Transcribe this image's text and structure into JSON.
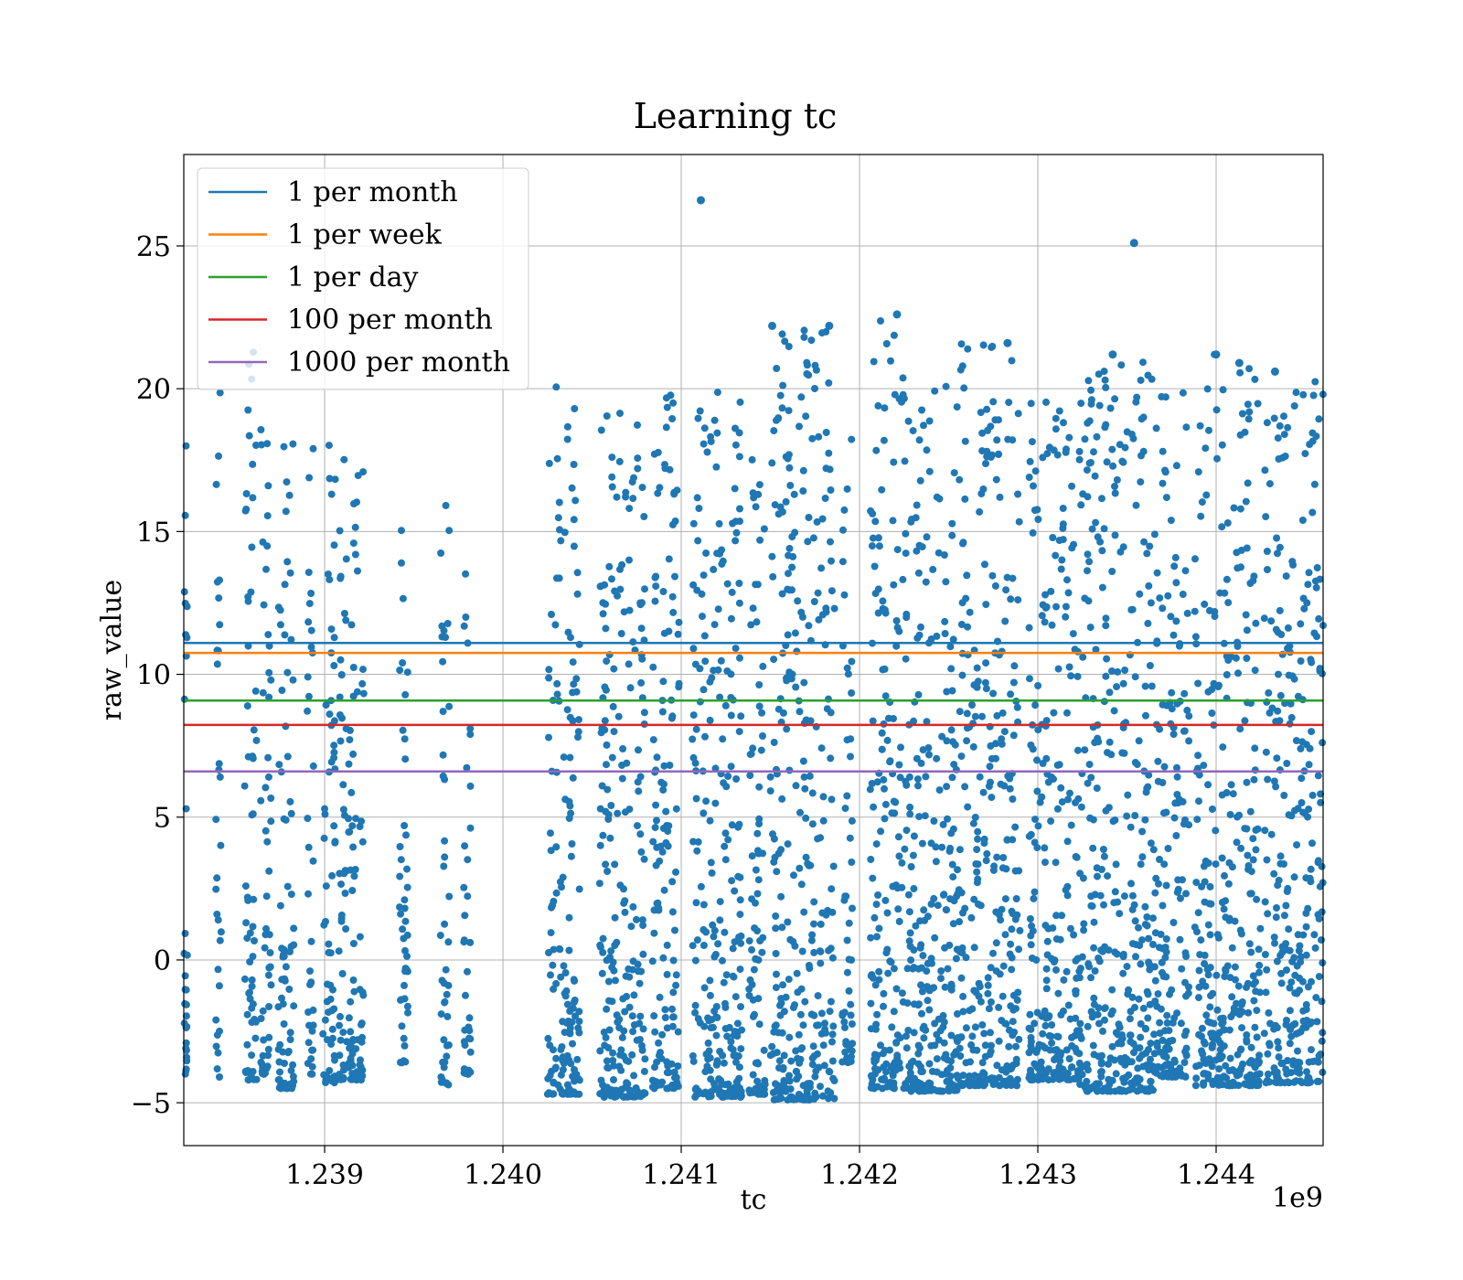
{
  "chart_data": {
    "type": "scatter",
    "title": "Learning tc",
    "xlabel": "tc",
    "ylabel": "raw_value",
    "x_offset_text": "1e9",
    "xlim": [
      1238210000,
      1244600000
    ],
    "ylim": [
      -6.5,
      28.2
    ],
    "x_ticks": [
      1239000000,
      1240000000,
      1241000000,
      1242000000,
      1243000000,
      1244000000
    ],
    "x_tick_labels": [
      "1.239",
      "1.240",
      "1.241",
      "1.242",
      "1.243",
      "1.244"
    ],
    "y_ticks": [
      -5,
      0,
      5,
      10,
      15,
      20,
      25
    ],
    "y_tick_labels": [
      "−5",
      "0",
      "5",
      "10",
      "15",
      "20",
      "25"
    ],
    "grid": true,
    "legend_position": "top-left",
    "scatter_color": "#1f77b4",
    "clusters": [
      {
        "x_start": 1238210000,
        "x_end": 1238230000,
        "y_min": -4.0,
        "y_max": 18.2
      },
      {
        "x_start": 1238390000,
        "x_end": 1238420000,
        "y_min": -4.1,
        "y_max": 20.0
      },
      {
        "x_start": 1238550000,
        "x_end": 1238620000,
        "y_min": -4.2,
        "y_max": 21.8
      },
      {
        "x_start": 1238640000,
        "x_end": 1238700000,
        "y_min": -4.0,
        "y_max": 19.0
      },
      {
        "x_start": 1238740000,
        "x_end": 1238830000,
        "y_min": -4.5,
        "y_max": 20.0
      },
      {
        "x_start": 1238900000,
        "x_end": 1238940000,
        "y_min": -4.0,
        "y_max": 18.0
      },
      {
        "x_start": 1238990000,
        "x_end": 1239060000,
        "y_min": -4.3,
        "y_max": 18.5
      },
      {
        "x_start": 1239080000,
        "x_end": 1239220000,
        "y_min": -4.2,
        "y_max": 19.1
      },
      {
        "x_start": 1239420000,
        "x_end": 1239470000,
        "y_min": -3.6,
        "y_max": 16.2
      },
      {
        "x_start": 1239650000,
        "x_end": 1239700000,
        "y_min": -4.4,
        "y_max": 17.7
      },
      {
        "x_start": 1239780000,
        "x_end": 1239820000,
        "y_min": -4.0,
        "y_max": 15.2
      },
      {
        "x_start": 1240250000,
        "x_end": 1240430000,
        "y_min": -4.7,
        "y_max": 20.3
      },
      {
        "x_start": 1240540000,
        "x_end": 1240800000,
        "y_min": -4.8,
        "y_max": 19.3
      },
      {
        "x_start": 1240840000,
        "x_end": 1240990000,
        "y_min": -4.5,
        "y_max": 19.8
      },
      {
        "x_start": 1241060000,
        "x_end": 1241340000,
        "y_min": -4.8,
        "y_max": 20.1
      },
      {
        "x_start": 1241380000,
        "x_end": 1241470000,
        "y_min": -4.7,
        "y_max": 18.0
      },
      {
        "x_start": 1241500000,
        "x_end": 1241860000,
        "y_min": -4.9,
        "y_max": 22.2
      },
      {
        "x_start": 1241900000,
        "x_end": 1241960000,
        "y_min": -3.6,
        "y_max": 18.5
      },
      {
        "x_start": 1242060000,
        "x_end": 1242280000,
        "y_min": -4.5,
        "y_max": 22.6
      },
      {
        "x_start": 1242280000,
        "x_end": 1242560000,
        "y_min": -4.6,
        "y_max": 20.1
      },
      {
        "x_start": 1242560000,
        "x_end": 1242900000,
        "y_min": -4.4,
        "y_max": 21.6
      },
      {
        "x_start": 1242950000,
        "x_end": 1243230000,
        "y_min": -4.2,
        "y_max": 19.6
      },
      {
        "x_start": 1243230000,
        "x_end": 1243650000,
        "y_min": -4.6,
        "y_max": 21.2
      },
      {
        "x_start": 1243650000,
        "x_end": 1243850000,
        "y_min": -4.1,
        "y_max": 20.3
      },
      {
        "x_start": 1243880000,
        "x_end": 1244250000,
        "y_min": -4.4,
        "y_max": 21.2
      },
      {
        "x_start": 1244270000,
        "x_end": 1244600000,
        "y_min": -4.3,
        "y_max": 20.6
      }
    ],
    "outliers": [
      {
        "x": 1241110000,
        "y": 26.6
      },
      {
        "x": 1243540000,
        "y": 25.1
      },
      {
        "x": 1242210000,
        "y": 22.6
      },
      {
        "x": 1241510000,
        "y": 22.2
      },
      {
        "x": 1241830000,
        "y": 22.2
      },
      {
        "x": 1242830000,
        "y": 21.6
      },
      {
        "x": 1243420000,
        "y": 21.2
      },
      {
        "x": 1244000000,
        "y": 21.2
      },
      {
        "x": 1244130000,
        "y": 20.9
      },
      {
        "x": 1244330000,
        "y": 20.6
      }
    ],
    "series": [
      {
        "name": "1 per month",
        "y": 11.1,
        "color": "#1f77b4"
      },
      {
        "name": "1 per week",
        "y": 10.75,
        "color": "#ff7f0e"
      },
      {
        "name": "1 per day",
        "y": 9.08,
        "color": "#2ca02c"
      },
      {
        "name": "100 per month",
        "y": 8.23,
        "color": "#d62728"
      },
      {
        "name": "1000 per month",
        "y": 6.6,
        "color": "#9467bd"
      }
    ]
  }
}
